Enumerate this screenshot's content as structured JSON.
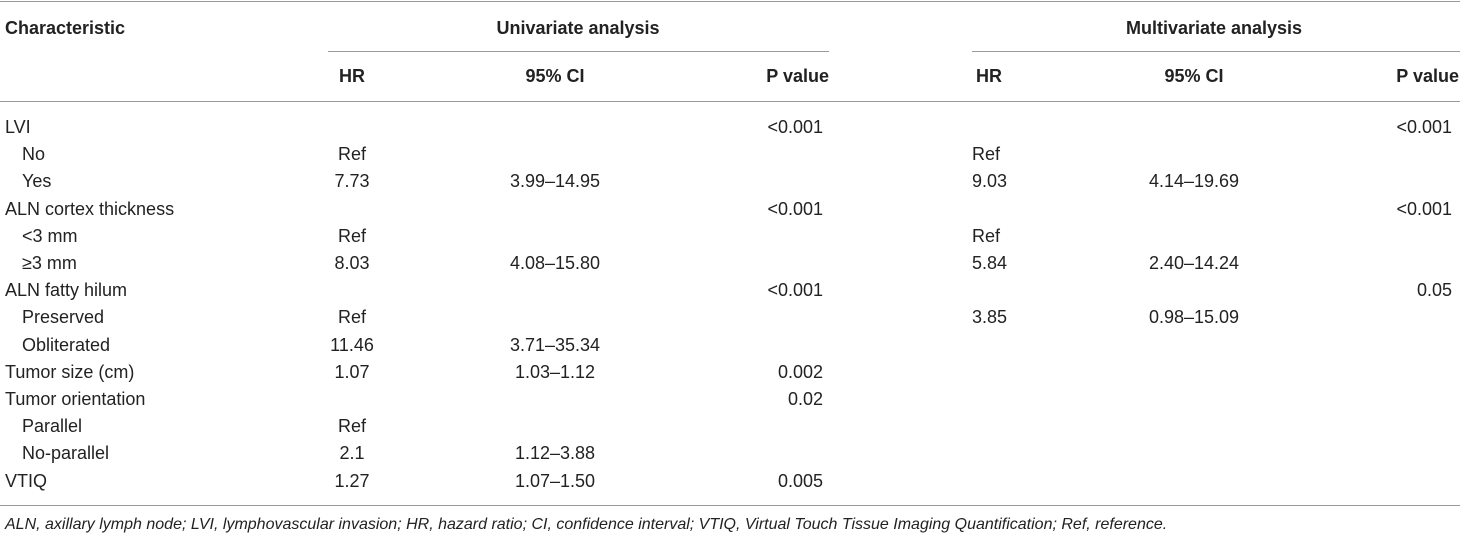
{
  "header": {
    "characteristic": "Characteristic",
    "univariate": "Univariate analysis",
    "multivariate": "Multivariate analysis",
    "uni_cols": [
      "HR",
      "95% CI",
      "P value"
    ],
    "multi_cols": [
      "HR",
      "95% CI",
      "P value"
    ]
  },
  "rows": [
    {
      "label": "LVI",
      "indent": false,
      "u_hr": "",
      "u_ci": "",
      "u_p": "<0.001",
      "m_hr": "",
      "m_ci": "",
      "m_p": "<0.001"
    },
    {
      "label": "No",
      "indent": true,
      "u_hr": "Ref",
      "u_ci": "",
      "u_p": "",
      "m_hr": "Ref",
      "m_ci": "",
      "m_p": ""
    },
    {
      "label": "Yes",
      "indent": true,
      "u_hr": "7.73",
      "u_ci": "3.99–14.95",
      "u_p": "",
      "m_hr": "9.03",
      "m_ci": "4.14–19.69",
      "m_p": ""
    },
    {
      "label": "ALN cortex thickness",
      "indent": false,
      "u_hr": "",
      "u_ci": "",
      "u_p": "<0.001",
      "m_hr": "",
      "m_ci": "",
      "m_p": "<0.001"
    },
    {
      "label": "<3 mm",
      "indent": true,
      "u_hr": "Ref",
      "u_ci": "",
      "u_p": "",
      "m_hr": "Ref",
      "m_ci": "",
      "m_p": ""
    },
    {
      "label": "≥3 mm",
      "indent": true,
      "u_hr": "8.03",
      "u_ci": "4.08–15.80",
      "u_p": "",
      "m_hr": "5.84",
      "m_ci": "2.40–14.24",
      "m_p": ""
    },
    {
      "label": "ALN fatty hilum",
      "indent": false,
      "u_hr": "",
      "u_ci": "",
      "u_p": "<0.001",
      "m_hr": "",
      "m_ci": "",
      "m_p": "0.05"
    },
    {
      "label": "Preserved",
      "indent": true,
      "u_hr": "Ref",
      "u_ci": "",
      "u_p": "",
      "m_hr": "3.85",
      "m_ci": "0.98–15.09",
      "m_p": ""
    },
    {
      "label": "Obliterated",
      "indent": true,
      "u_hr": "11.46",
      "u_ci": "3.71–35.34",
      "u_p": "",
      "m_hr": "",
      "m_ci": "",
      "m_p": ""
    },
    {
      "label": "Tumor size (cm)",
      "indent": false,
      "u_hr": "1.07",
      "u_ci": "1.03–1.12",
      "u_p": "0.002",
      "m_hr": "",
      "m_ci": "",
      "m_p": ""
    },
    {
      "label": "Tumor orientation",
      "indent": false,
      "u_hr": "",
      "u_ci": "",
      "u_p": "0.02",
      "m_hr": "",
      "m_ci": "",
      "m_p": ""
    },
    {
      "label": "Parallel",
      "indent": true,
      "u_hr": "Ref",
      "u_ci": "",
      "u_p": "",
      "m_hr": "",
      "m_ci": "",
      "m_p": ""
    },
    {
      "label": "No-parallel",
      "indent": true,
      "u_hr": "2.1",
      "u_ci": "1.12–3.88",
      "u_p": "",
      "m_hr": "",
      "m_ci": "",
      "m_p": ""
    },
    {
      "label": "VTIQ",
      "indent": false,
      "u_hr": "1.27",
      "u_ci": "1.07–1.50",
      "u_p": "0.005",
      "m_hr": "",
      "m_ci": "",
      "m_p": ""
    }
  ],
  "footnote": "ALN, axillary lymph node; LVI, lymphovascular invasion; HR, hazard ratio; CI, confidence interval; VTIQ, Virtual Touch Tissue Imaging Quantification; Ref, reference."
}
